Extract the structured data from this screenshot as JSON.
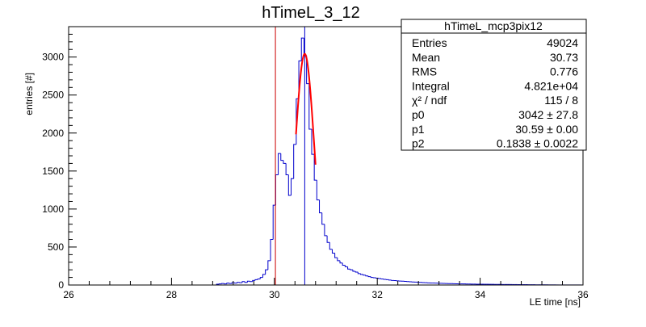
{
  "chart_data": {
    "type": "histogram",
    "title": "hTimeL_3_12",
    "xlabel": "LE time [ns]",
    "ylabel": "entries [#]",
    "xlim": [
      26,
      36
    ],
    "ylim": [
      0,
      3400
    ],
    "grid": false,
    "x_ticks": [
      26,
      28,
      30,
      32,
      34,
      36
    ],
    "y_ticks": [
      0,
      500,
      1000,
      1500,
      2000,
      2500,
      3000
    ],
    "bin_width": 0.05,
    "histogram_color": "#0000cc",
    "fit_color": "#ff0000",
    "red_line_color": "#cc0000",
    "blue_line_color": "#0000cc",
    "bins": [
      {
        "x": 28.9,
        "y": 10
      },
      {
        "x": 28.95,
        "y": 15
      },
      {
        "x": 29.0,
        "y": 20
      },
      {
        "x": 29.05,
        "y": 15
      },
      {
        "x": 29.1,
        "y": 25
      },
      {
        "x": 29.15,
        "y": 20
      },
      {
        "x": 29.2,
        "y": 30
      },
      {
        "x": 29.25,
        "y": 25
      },
      {
        "x": 29.3,
        "y": 35
      },
      {
        "x": 29.35,
        "y": 30
      },
      {
        "x": 29.4,
        "y": 45
      },
      {
        "x": 29.45,
        "y": 35
      },
      {
        "x": 29.5,
        "y": 50
      },
      {
        "x": 29.55,
        "y": 45
      },
      {
        "x": 29.6,
        "y": 60
      },
      {
        "x": 29.65,
        "y": 70
      },
      {
        "x": 29.7,
        "y": 80
      },
      {
        "x": 29.75,
        "y": 100
      },
      {
        "x": 29.8,
        "y": 140
      },
      {
        "x": 29.85,
        "y": 200
      },
      {
        "x": 29.9,
        "y": 320
      },
      {
        "x": 29.95,
        "y": 600
      },
      {
        "x": 30.0,
        "y": 1050
      },
      {
        "x": 30.05,
        "y": 1450
      },
      {
        "x": 30.1,
        "y": 1730
      },
      {
        "x": 30.15,
        "y": 1640
      },
      {
        "x": 30.2,
        "y": 1600
      },
      {
        "x": 30.25,
        "y": 1450
      },
      {
        "x": 30.3,
        "y": 1180
      },
      {
        "x": 30.35,
        "y": 1400
      },
      {
        "x": 30.4,
        "y": 1850
      },
      {
        "x": 30.45,
        "y": 2450
      },
      {
        "x": 30.5,
        "y": 2950
      },
      {
        "x": 30.55,
        "y": 3250
      },
      {
        "x": 30.6,
        "y": 3020
      },
      {
        "x": 30.65,
        "y": 2650
      },
      {
        "x": 30.7,
        "y": 2050
      },
      {
        "x": 30.75,
        "y": 1720
      },
      {
        "x": 30.8,
        "y": 1380
      },
      {
        "x": 30.85,
        "y": 1120
      },
      {
        "x": 30.9,
        "y": 950
      },
      {
        "x": 30.95,
        "y": 800
      },
      {
        "x": 31.0,
        "y": 650
      },
      {
        "x": 31.05,
        "y": 560
      },
      {
        "x": 31.1,
        "y": 470
      },
      {
        "x": 31.15,
        "y": 420
      },
      {
        "x": 31.2,
        "y": 360
      },
      {
        "x": 31.25,
        "y": 320
      },
      {
        "x": 31.3,
        "y": 290
      },
      {
        "x": 31.35,
        "y": 260
      },
      {
        "x": 31.4,
        "y": 240
      },
      {
        "x": 31.45,
        "y": 210
      },
      {
        "x": 31.5,
        "y": 200
      },
      {
        "x": 31.55,
        "y": 180
      },
      {
        "x": 31.6,
        "y": 170
      },
      {
        "x": 31.65,
        "y": 150
      },
      {
        "x": 31.7,
        "y": 140
      },
      {
        "x": 31.75,
        "y": 130
      },
      {
        "x": 31.8,
        "y": 120
      },
      {
        "x": 31.85,
        "y": 110
      },
      {
        "x": 31.9,
        "y": 100
      },
      {
        "x": 31.95,
        "y": 95
      },
      {
        "x": 32.0,
        "y": 90
      },
      {
        "x": 32.05,
        "y": 85
      },
      {
        "x": 32.1,
        "y": 80
      },
      {
        "x": 32.15,
        "y": 75
      },
      {
        "x": 32.2,
        "y": 70
      },
      {
        "x": 32.25,
        "y": 65
      },
      {
        "x": 32.3,
        "y": 60
      },
      {
        "x": 32.35,
        "y": 58
      },
      {
        "x": 32.4,
        "y": 55
      },
      {
        "x": 32.45,
        "y": 52
      },
      {
        "x": 32.5,
        "y": 50
      },
      {
        "x": 32.55,
        "y": 48
      },
      {
        "x": 32.6,
        "y": 45
      },
      {
        "x": 32.65,
        "y": 42
      },
      {
        "x": 32.7,
        "y": 40
      },
      {
        "x": 32.75,
        "y": 38
      },
      {
        "x": 32.8,
        "y": 36
      },
      {
        "x": 32.85,
        "y": 34
      },
      {
        "x": 32.9,
        "y": 32
      },
      {
        "x": 32.95,
        "y": 30
      },
      {
        "x": 33.0,
        "y": 28
      },
      {
        "x": 33.05,
        "y": 27
      },
      {
        "x": 33.1,
        "y": 26
      },
      {
        "x": 33.15,
        "y": 25
      },
      {
        "x": 33.2,
        "y": 24
      },
      {
        "x": 33.25,
        "y": 22
      },
      {
        "x": 33.3,
        "y": 21
      },
      {
        "x": 33.35,
        "y": 20
      },
      {
        "x": 33.4,
        "y": 19
      },
      {
        "x": 33.45,
        "y": 18
      },
      {
        "x": 33.5,
        "y": 17
      },
      {
        "x": 33.55,
        "y": 16
      },
      {
        "x": 33.6,
        "y": 15
      },
      {
        "x": 33.65,
        "y": 15
      },
      {
        "x": 33.7,
        "y": 14
      },
      {
        "x": 33.75,
        "y": 13
      },
      {
        "x": 33.8,
        "y": 13
      },
      {
        "x": 33.85,
        "y": 12
      },
      {
        "x": 33.9,
        "y": 12
      },
      {
        "x": 33.95,
        "y": 11
      },
      {
        "x": 34.0,
        "y": 11
      },
      {
        "x": 34.05,
        "y": 10
      },
      {
        "x": 34.1,
        "y": 10
      },
      {
        "x": 34.15,
        "y": 10
      },
      {
        "x": 34.2,
        "y": 9
      },
      {
        "x": 34.25,
        "y": 9
      },
      {
        "x": 34.3,
        "y": 8
      },
      {
        "x": 34.35,
        "y": 8
      },
      {
        "x": 34.4,
        "y": 8
      },
      {
        "x": 34.45,
        "y": 7
      },
      {
        "x": 34.5,
        "y": 7
      },
      {
        "x": 34.55,
        "y": 7
      },
      {
        "x": 34.6,
        "y": 6
      },
      {
        "x": 34.65,
        "y": 6
      },
      {
        "x": 34.7,
        "y": 6
      },
      {
        "x": 34.75,
        "y": 5
      },
      {
        "x": 34.8,
        "y": 5
      },
      {
        "x": 34.85,
        "y": 5
      },
      {
        "x": 34.9,
        "y": 5
      },
      {
        "x": 34.95,
        "y": 4
      },
      {
        "x": 35.0,
        "y": 4
      },
      {
        "x": 35.05,
        "y": 4
      },
      {
        "x": 35.1,
        "y": 3
      },
      {
        "x": 35.15,
        "y": 3
      },
      {
        "x": 35.2,
        "y": 3
      },
      {
        "x": 35.25,
        "y": 3
      },
      {
        "x": 35.3,
        "y": 2
      },
      {
        "x": 35.35,
        "y": 2
      },
      {
        "x": 35.4,
        "y": 2
      },
      {
        "x": 35.45,
        "y": 2
      },
      {
        "x": 35.5,
        "y": 1
      },
      {
        "x": 35.55,
        "y": 1
      },
      {
        "x": 35.6,
        "y": 1
      },
      {
        "x": 35.65,
        "y": 1
      },
      {
        "x": 35.7,
        "y": 1
      },
      {
        "x": 35.75,
        "y": 1
      },
      {
        "x": 35.8,
        "y": 1
      },
      {
        "x": 35.85,
        "y": 1
      },
      {
        "x": 35.9,
        "y": 1
      },
      {
        "x": 35.95,
        "y": 1
      }
    ],
    "gaussian_fit": {
      "p0": 3042,
      "p1": 30.59,
      "p2": 0.1838,
      "x_range": [
        30.42,
        30.8
      ]
    },
    "vertical_lines": [
      {
        "name": "red",
        "x": 30.02
      },
      {
        "name": "blue",
        "x": 30.59
      }
    ],
    "stats_box": {
      "title": "hTimeL_mcp3pix12",
      "rows": [
        {
          "label": "Entries",
          "value": "49024"
        },
        {
          "label": "Mean",
          "value": "30.73"
        },
        {
          "label": "RMS",
          "value": "0.776"
        },
        {
          "label": "Integral",
          "value": "4.821e+04"
        },
        {
          "label": "χ² / ndf",
          "value": "115 / 8"
        },
        {
          "label": "p0",
          "value": "3042 ± 27.8"
        },
        {
          "label": "p1",
          "value": "30.59 ± 0.00"
        },
        {
          "label": "p2",
          "value": "0.1838 ± 0.0022"
        }
      ]
    }
  }
}
